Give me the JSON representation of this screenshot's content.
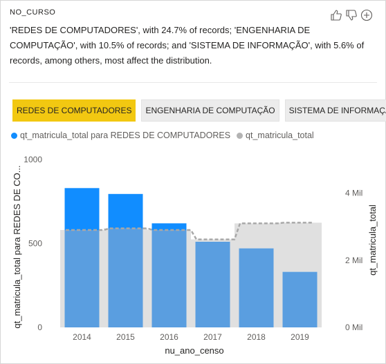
{
  "visual": {
    "field_name": "NO_CURSO",
    "summary": "'REDES DE COMPUTADORES', with 24.7% of records; 'ENGENHARIA DE COMPUTAÇÃO', with 10.5% of records; and 'SISTEMA DE INFORMAÇÃO', with 5.6% of records, among others, most affect the distribution.",
    "feedback_icons": [
      "thumbs-up-icon",
      "thumbs-down-icon",
      "add-icon"
    ]
  },
  "chips": [
    {
      "label": "REDES DE COMPUTADORES",
      "active": true
    },
    {
      "label": "ENGENHARIA DE COMPUTAÇÃO",
      "active": false
    },
    {
      "label": "SISTEMA DE INFORMAÇÃO",
      "active": false
    }
  ],
  "legend": {
    "series1": "qt_matricula_total para REDES DE COMPUTADORES",
    "series2": "qt_matricula_total"
  },
  "colors": {
    "accent": "#118dff",
    "highlight": "#f2c811",
    "overlay_bar": "#5a9ee0",
    "area": "#e0e0e0",
    "dashed": "#a8a8a8"
  },
  "chart_data": {
    "type": "bar",
    "categories": [
      "2014",
      "2015",
      "2016",
      "2017",
      "2018",
      "2019"
    ],
    "xlabel": "nu_ano_censo",
    "ylabel_left": "qt_matricula_total para REDES DE CO...",
    "ylabel_right": "qt_matricula_total",
    "y_left": {
      "lim": [
        0,
        1000
      ],
      "ticks": [
        "0",
        "500",
        "1000"
      ],
      "tick_values": [
        0,
        500,
        1000
      ]
    },
    "y_right": {
      "lim": [
        0,
        5000
      ],
      "ticks": [
        "0 Mil",
        "2 Mil",
        "4 Mil"
      ],
      "tick_values": [
        0,
        2000,
        4000
      ]
    },
    "series": [
      {
        "name": "qt_matricula_total para REDES DE COMPUTADORES",
        "axis": "left",
        "values": [
          830,
          795,
          620,
          510,
          470,
          330
        ]
      },
      {
        "name": "qt_matricula_total",
        "axis": "right",
        "values": [
          2900,
          2950,
          2900,
          2620,
          3100,
          3120
        ]
      }
    ]
  }
}
